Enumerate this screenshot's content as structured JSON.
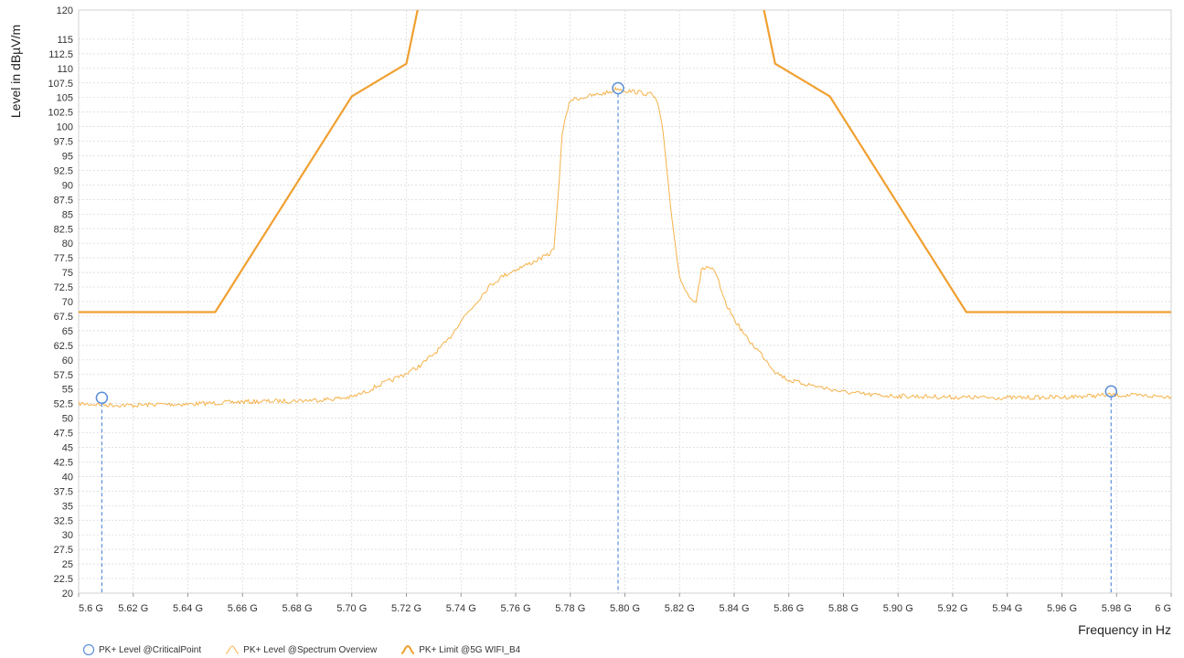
{
  "chart_data": {
    "type": "line",
    "xlabel": "Frequency in Hz",
    "ylabel": "Level in dBµV/m",
    "xlim": [
      5.6,
      6.0
    ],
    "ylim": [
      20,
      120
    ],
    "x_ticks": [
      5.6,
      5.62,
      5.64,
      5.66,
      5.68,
      5.7,
      5.72,
      5.74,
      5.76,
      5.78,
      5.8,
      5.82,
      5.84,
      5.86,
      5.88,
      5.9,
      5.92,
      5.94,
      5.96,
      5.98,
      6.0
    ],
    "x_tick_labels": [
      "5.6 G",
      "5.62 G",
      "5.64 G",
      "5.66 G",
      "5.68 G",
      "5.70 G",
      "5.72 G",
      "5.74 G",
      "5.76 G",
      "5.78 G",
      "5.80 G",
      "5.82 G",
      "5.84 G",
      "5.86 G",
      "5.88 G",
      "5.90 G",
      "5.92 G",
      "5.94 G",
      "5.96 G",
      "5.98 G",
      "6 G"
    ],
    "y_ticks": [
      20,
      22.5,
      25,
      27.5,
      30,
      32.5,
      35,
      37.5,
      40,
      42.5,
      45,
      47.5,
      50,
      52.5,
      55,
      57.5,
      60,
      62.5,
      65,
      67.5,
      70,
      72.5,
      75,
      77.5,
      80,
      82.5,
      85,
      87.5,
      90,
      92.5,
      95,
      97.5,
      100,
      102.5,
      105,
      107.5,
      110,
      112.5,
      115,
      120
    ],
    "grid": true,
    "legend_position": "bottom-left",
    "series": [
      {
        "name": "PK+ Limit @5G WIFI_B4",
        "kind": "limit",
        "color": "#f0a030",
        "x": [
          5.6,
          5.65,
          5.7,
          5.72,
          5.725,
          5.85,
          5.855,
          5.875,
          5.925,
          6.0
        ],
        "y": [
          68.2,
          68.2,
          105.2,
          110.8,
          122,
          122,
          110.8,
          105.2,
          68.2,
          68.2
        ]
      },
      {
        "name": "PK+ Level @Spectrum Overview",
        "kind": "trace",
        "color": "#f5b24a",
        "x": [
          5.6,
          5.61,
          5.62,
          5.63,
          5.64,
          5.65,
          5.66,
          5.67,
          5.68,
          5.69,
          5.7,
          5.705,
          5.71,
          5.715,
          5.72,
          5.725,
          5.73,
          5.735,
          5.74,
          5.745,
          5.75,
          5.755,
          5.76,
          5.765,
          5.77,
          5.772,
          5.774,
          5.776,
          5.777,
          5.78,
          5.79,
          5.795,
          5.797,
          5.8,
          5.805,
          5.81,
          5.812,
          5.814,
          5.817,
          5.82,
          5.824,
          5.826,
          5.828,
          5.83,
          5.832,
          5.834,
          5.836,
          5.84,
          5.845,
          5.85,
          5.855,
          5.86,
          5.87,
          5.88,
          5.89,
          5.9,
          5.92,
          5.94,
          5.96,
          5.978,
          6.0
        ],
        "y": [
          52.5,
          52.3,
          52.2,
          52.4,
          52.4,
          52.6,
          52.8,
          52.9,
          53.0,
          53.2,
          53.6,
          54.5,
          55.7,
          56.6,
          57.7,
          59.0,
          61.0,
          63.2,
          66.8,
          69.5,
          72.5,
          74.3,
          75.5,
          76.5,
          77.6,
          78.0,
          79.0,
          91.0,
          99.0,
          104.6,
          105.5,
          106.0,
          106.6,
          106.2,
          105.9,
          105.5,
          104.0,
          99.0,
          85.0,
          74.0,
          70.5,
          70.2,
          75.3,
          76.0,
          75.5,
          74.0,
          70.5,
          67.0,
          63.5,
          61.0,
          58.0,
          56.5,
          55.5,
          54.5,
          54.0,
          53.8,
          53.6,
          53.5,
          53.6,
          54.0,
          53.7
        ]
      },
      {
        "name": "PK+ Level @CriticalPoint",
        "kind": "points",
        "color": "#5b8fd8",
        "x": [
          5.6085,
          5.7975,
          5.978
        ],
        "y": [
          53.5,
          106.6,
          54.6
        ]
      }
    ]
  }
}
